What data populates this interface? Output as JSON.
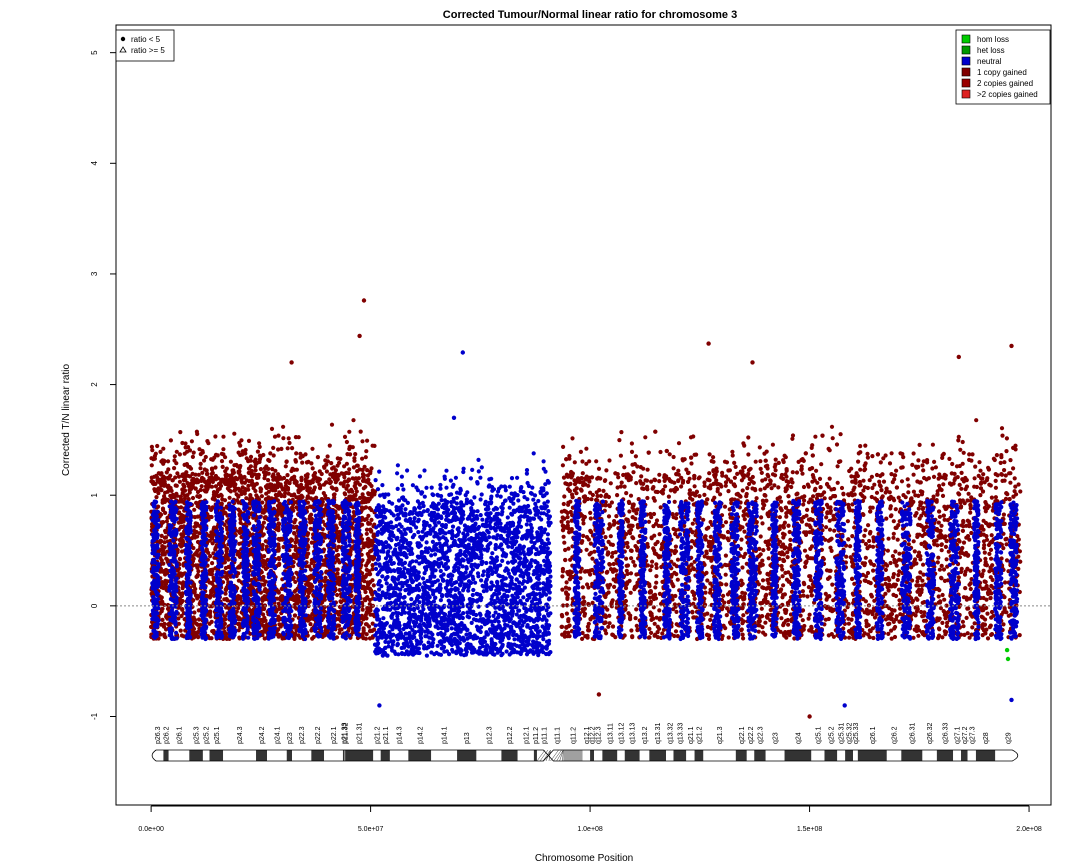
{
  "chart_data": {
    "type": "scatter",
    "title": "Corrected Tumour/Normal linear ratio for chromosome  3",
    "xlabel": "Chromosome Position",
    "ylabel": "Corrected T/N linear ratio",
    "xlim": [
      -8000000,
      205000000
    ],
    "ylim": [
      -1.8,
      5.25
    ],
    "x_ticks": [
      0,
      50000000,
      100000000,
      150000000,
      200000000
    ],
    "x_tick_labels": [
      "0.0e+00",
      "5.0e+07",
      "1.0e+08",
      "1.5e+08",
      "2.0e+08"
    ],
    "y_ticks": [
      -1,
      0,
      1,
      2,
      3,
      4,
      5
    ],
    "y_tick_labels": [
      "-1",
      "0",
      "1",
      "2",
      "3",
      "4",
      "5"
    ],
    "reference_line_y": 0,
    "colors": {
      "hom_loss": "#00cc00",
      "het_loss": "#009900",
      "neutral": "#0000cc",
      "gain1": "#800000",
      "gain2": "#990000",
      "gain3": "#dd2222"
    },
    "legend_shape": {
      "position": "top-left",
      "items": [
        {
          "symbol": "dot",
          "label": "ratio < 5"
        },
        {
          "symbol": "triangle",
          "label": "ratio >= 5"
        }
      ]
    },
    "legend_state": {
      "position": "top-right",
      "items": [
        {
          "label": "hom loss",
          "color": "#00cc00"
        },
        {
          "label": "het loss",
          "color": "#009900"
        },
        {
          "label": "neutral",
          "color": "#0000cc"
        },
        {
          "label": "1 copy gained",
          "color": "#800000"
        },
        {
          "label": "2 copies gained",
          "color": "#990000"
        },
        {
          "label": ">2 copies gained",
          "color": "#dd2222"
        }
      ]
    },
    "segments": [
      {
        "start": 0,
        "end": 51000000,
        "state": "gain1",
        "lo": -0.3,
        "hi": 1.2
      },
      {
        "start": 51000000,
        "end": 91000000,
        "state": "neutral",
        "lo": -0.45,
        "hi": 0.9
      },
      {
        "start": 93500000,
        "end": 198000000,
        "state": "gain1",
        "lo": -0.3,
        "hi": 1.2
      }
    ],
    "neutral_stripes": [
      1000000,
      5000000,
      8500000,
      12000000,
      15500000,
      18500000,
      21500000,
      24000000,
      27500000,
      31000000,
      34500000,
      38000000,
      41000000,
      44500000,
      47000000,
      97000000,
      102000000,
      107000000,
      112000000,
      117500000,
      121500000,
      125000000,
      129000000,
      133000000,
      137000000,
      142000000,
      147000000,
      152000000,
      157000000,
      161000000,
      166000000,
      172000000,
      177500000,
      183000000,
      188000000,
      193000000,
      196500000
    ],
    "notable_points": [
      {
        "x": 48500000,
        "y": 2.76,
        "state": "gain1"
      },
      {
        "x": 47500000,
        "y": 2.44,
        "state": "gain1"
      },
      {
        "x": 32000000,
        "y": 2.2,
        "state": "gain1"
      },
      {
        "x": 71000000,
        "y": 2.29,
        "state": "neutral"
      },
      {
        "x": 127000000,
        "y": 2.37,
        "state": "gain1"
      },
      {
        "x": 137000000,
        "y": 2.2,
        "state": "gain1"
      },
      {
        "x": 196000000,
        "y": 2.35,
        "state": "gain1"
      },
      {
        "x": 184000000,
        "y": 2.25,
        "state": "gain1"
      },
      {
        "x": 69000000,
        "y": 1.7,
        "state": "neutral"
      },
      {
        "x": 195000000,
        "y": -0.4,
        "state": "hom_loss"
      },
      {
        "x": 195200000,
        "y": -0.48,
        "state": "hom_loss"
      },
      {
        "x": 196000000,
        "y": -0.85,
        "state": "neutral"
      },
      {
        "x": 52000000,
        "y": -0.9,
        "state": "neutral"
      },
      {
        "x": 102000000,
        "y": -0.8,
        "state": "gain1"
      },
      {
        "x": 158000000,
        "y": -0.9,
        "state": "neutral"
      },
      {
        "x": 150000000,
        "y": -1.0,
        "state": "gain1"
      }
    ],
    "ideogram": {
      "centromere_mb": 90.5,
      "bands": [
        {
          "name": "p26.3",
          "s": 0,
          "e": 2.8,
          "st": "w"
        },
        {
          "name": "p26.2",
          "s": 2.8,
          "e": 4.0,
          "st": "g"
        },
        {
          "name": "p26.1",
          "s": 4.0,
          "e": 8.7,
          "st": "w"
        },
        {
          "name": "p25.3",
          "s": 8.7,
          "e": 11.8,
          "st": "g"
        },
        {
          "name": "p25.2",
          "s": 11.8,
          "e": 13.3,
          "st": "w"
        },
        {
          "name": "p25.1",
          "s": 13.3,
          "e": 16.4,
          "st": "g"
        },
        {
          "name": "p24.3",
          "s": 16.4,
          "e": 23.9,
          "st": "w"
        },
        {
          "name": "p24.2",
          "s": 23.9,
          "e": 26.4,
          "st": "g"
        },
        {
          "name": "p24.1",
          "s": 26.4,
          "e": 30.9,
          "st": "w"
        },
        {
          "name": "p23",
          "s": 30.9,
          "e": 32.1,
          "st": "g"
        },
        {
          "name": "p22.3",
          "s": 32.1,
          "e": 36.5,
          "st": "w"
        },
        {
          "name": "p22.2",
          "s": 36.5,
          "e": 39.4,
          "st": "g"
        },
        {
          "name": "p22.1",
          "s": 39.4,
          "e": 43.7,
          "st": "w"
        },
        {
          "name": "p21.33",
          "s": 43.7,
          "e": 44.1,
          "st": "g"
        },
        {
          "name": "p21.32",
          "s": 44.1,
          "e": 44.2,
          "st": "w"
        },
        {
          "name": "p21.31",
          "s": 44.2,
          "e": 50.6,
          "st": "g"
        },
        {
          "name": "p21.2",
          "s": 50.6,
          "e": 52.3,
          "st": "w"
        },
        {
          "name": "p21.1",
          "s": 52.3,
          "e": 54.4,
          "st": "g"
        },
        {
          "name": "p14.3",
          "s": 54.4,
          "e": 58.6,
          "st": "w"
        },
        {
          "name": "p14.2",
          "s": 58.6,
          "e": 63.8,
          "st": "g"
        },
        {
          "name": "p14.1",
          "s": 63.8,
          "e": 69.7,
          "st": "w"
        },
        {
          "name": "p13",
          "s": 69.7,
          "e": 74.1,
          "st": "g"
        },
        {
          "name": "p12.3",
          "s": 74.1,
          "e": 79.8,
          "st": "w"
        },
        {
          "name": "p12.2",
          "s": 79.8,
          "e": 83.5,
          "st": "g"
        },
        {
          "name": "p12.1",
          "s": 83.5,
          "e": 87.2,
          "st": "w"
        },
        {
          "name": "p11.2",
          "s": 87.2,
          "e": 87.9,
          "st": "g"
        },
        {
          "name": "p11.1",
          "s": 87.9,
          "e": 91.0,
          "st": "acen"
        },
        {
          "name": "q11.1",
          "s": 91.0,
          "e": 93.9,
          "st": "acen"
        },
        {
          "name": "q11.2",
          "s": 93.9,
          "e": 98.3,
          "st": "var"
        },
        {
          "name": "q12.1",
          "s": 98.3,
          "e": 100.0,
          "st": "w"
        },
        {
          "name": "q12.2",
          "s": 100.0,
          "e": 100.9,
          "st": "g"
        },
        {
          "name": "q12.3",
          "s": 100.9,
          "e": 102.8,
          "st": "w"
        },
        {
          "name": "q13.11",
          "s": 102.8,
          "e": 106.2,
          "st": "g"
        },
        {
          "name": "q13.12",
          "s": 106.2,
          "e": 107.9,
          "st": "w"
        },
        {
          "name": "q13.13",
          "s": 107.9,
          "e": 111.3,
          "st": "g"
        },
        {
          "name": "q13.2",
          "s": 111.3,
          "e": 113.5,
          "st": "w"
        },
        {
          "name": "q13.31",
          "s": 113.5,
          "e": 117.3,
          "st": "g"
        },
        {
          "name": "q13.32",
          "s": 117.3,
          "e": 119.0,
          "st": "w"
        },
        {
          "name": "q13.33",
          "s": 119.0,
          "e": 121.9,
          "st": "g"
        },
        {
          "name": "q21.1",
          "s": 121.9,
          "e": 123.8,
          "st": "w"
        },
        {
          "name": "q21.2",
          "s": 123.8,
          "e": 125.8,
          "st": "g"
        },
        {
          "name": "q21.3",
          "s": 125.8,
          "e": 133.2,
          "st": "w"
        },
        {
          "name": "q22.1",
          "s": 133.2,
          "e": 135.7,
          "st": "g"
        },
        {
          "name": "q22.2",
          "s": 135.7,
          "e": 137.4,
          "st": "w"
        },
        {
          "name": "q22.3",
          "s": 137.4,
          "e": 140.0,
          "st": "g"
        },
        {
          "name": "q23",
          "s": 140.0,
          "e": 144.3,
          "st": "w"
        },
        {
          "name": "q24",
          "s": 144.3,
          "e": 150.4,
          "st": "g"
        },
        {
          "name": "q25.1",
          "s": 150.4,
          "e": 153.4,
          "st": "w"
        },
        {
          "name": "q25.2",
          "s": 153.4,
          "e": 156.3,
          "st": "g"
        },
        {
          "name": "q25.31",
          "s": 156.3,
          "e": 158.1,
          "st": "w"
        },
        {
          "name": "q25.32",
          "s": 158.1,
          "e": 159.9,
          "st": "g"
        },
        {
          "name": "q25.33",
          "s": 159.9,
          "e": 161.0,
          "st": "w"
        },
        {
          "name": "q26.1",
          "s": 161.0,
          "e": 167.6,
          "st": "g"
        },
        {
          "name": "q26.2",
          "s": 167.6,
          "e": 170.9,
          "st": "w"
        },
        {
          "name": "q26.31",
          "s": 170.9,
          "e": 175.7,
          "st": "g"
        },
        {
          "name": "q26.32",
          "s": 175.7,
          "e": 179.0,
          "st": "w"
        },
        {
          "name": "q26.33",
          "s": 179.0,
          "e": 182.7,
          "st": "g"
        },
        {
          "name": "q27.1",
          "s": 182.7,
          "e": 184.5,
          "st": "w"
        },
        {
          "name": "q27.2",
          "s": 184.5,
          "e": 186.0,
          "st": "g"
        },
        {
          "name": "q27.3",
          "s": 186.0,
          "e": 187.9,
          "st": "w"
        },
        {
          "name": "q28",
          "s": 187.9,
          "e": 192.3,
          "st": "g"
        },
        {
          "name": "q29",
          "s": 192.3,
          "e": 198.0,
          "st": "w"
        }
      ]
    }
  }
}
